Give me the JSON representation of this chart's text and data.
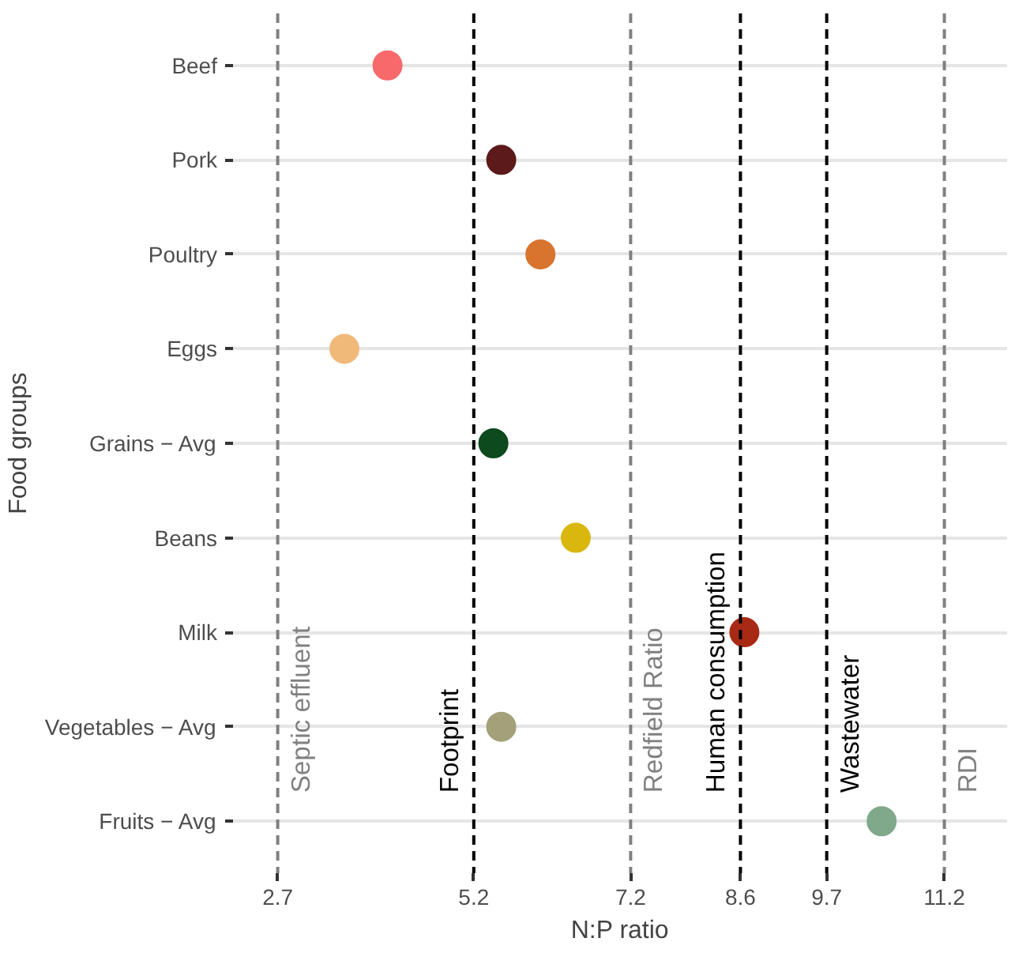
{
  "chart_data": {
    "type": "scatter",
    "xlabel": "N:P ratio",
    "ylabel": "Food groups",
    "categories": [
      "Beef",
      "Pork",
      "Poultry",
      "Eggs",
      "Grains − Avg",
      "Beans",
      "Milk",
      "Vegetables − Avg",
      "Fruits − Avg"
    ],
    "orientation": "horizontal",
    "values": [
      4.1,
      5.55,
      6.05,
      3.55,
      5.45,
      6.5,
      8.65,
      5.55,
      10.4
    ],
    "colors": [
      "#f8696b",
      "#5c1a1a",
      "#d9742e",
      "#f0b97a",
      "#0d4a1e",
      "#d9b70e",
      "#a82a14",
      "#a3a07a",
      "#7fa98a"
    ],
    "marker": "circle",
    "xlim": [
      2.13,
      12.0
    ],
    "xticks": [
      2.7,
      5.2,
      7.2,
      8.6,
      9.7,
      11.2
    ],
    "grid": "y",
    "ref_lines": [
      {
        "axis": "x",
        "value": 2.7,
        "label": "Septic effluent",
        "color": "#808080",
        "line_style": "dashed"
      },
      {
        "axis": "x",
        "value": 5.2,
        "label": "Footprint",
        "color": "#000000",
        "line_style": "dashed"
      },
      {
        "axis": "x",
        "value": 7.2,
        "label": "Redfield Ratio",
        "color": "#808080",
        "line_style": "dashed"
      },
      {
        "axis": "x",
        "value": 8.6,
        "label": "Human consumption",
        "color": "#000000",
        "line_style": "dashed"
      },
      {
        "axis": "x",
        "value": 9.7,
        "label": "Wastewater",
        "color": "#000000",
        "line_style": "dashed"
      },
      {
        "axis": "x",
        "value": 11.2,
        "label": "RDI",
        "color": "#808080",
        "line_style": "dashed"
      }
    ]
  }
}
